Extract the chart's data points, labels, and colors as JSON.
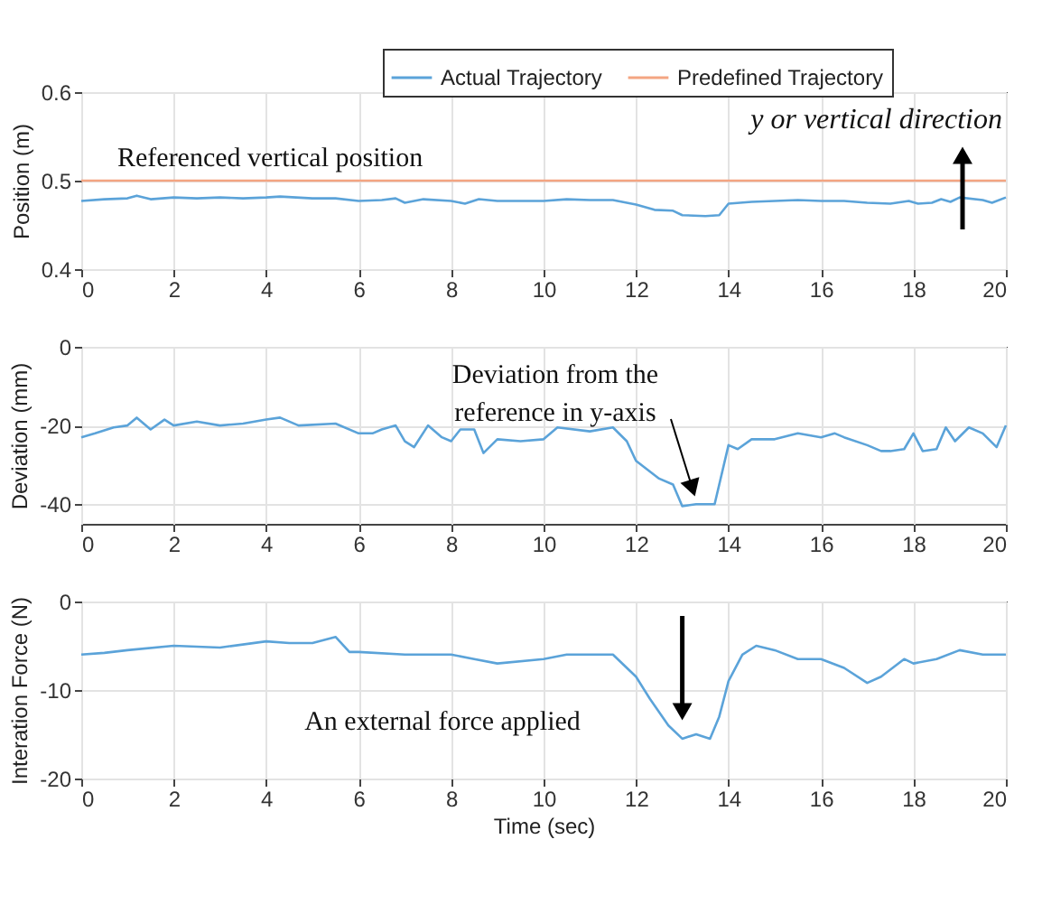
{
  "chart_data": [
    {
      "type": "line",
      "ylabel": "Position (m)",
      "xlim": [
        0,
        20
      ],
      "xticks": [
        0,
        2,
        4,
        6,
        8,
        10,
        12,
        14,
        16,
        18,
        20
      ],
      "ylim": [
        0.4,
        0.6
      ],
      "yticks": [
        0.4,
        0.5,
        0.6
      ],
      "grid": true,
      "legend": "top right",
      "annotations": [
        "Referenced vertical position",
        "y or vertical direction"
      ],
      "series": [
        {
          "name": "Actual Trajectory",
          "color": "#5ba3d9",
          "x": [
            0,
            0.5,
            1,
            1.2,
            1.5,
            2,
            2.5,
            3,
            3.5,
            4,
            4.3,
            5,
            5.5,
            6,
            6.5,
            6.8,
            7,
            7.4,
            8,
            8.3,
            8.6,
            9,
            10,
            10.5,
            11,
            11.5,
            12,
            12.4,
            12.8,
            13,
            13.5,
            13.8,
            14,
            14.5,
            15,
            15.5,
            16,
            16.5,
            17,
            17.5,
            17.9,
            18.1,
            18.4,
            18.6,
            18.8,
            19,
            19.5,
            19.7,
            20
          ],
          "values": [
            0.477,
            0.479,
            0.48,
            0.483,
            0.479,
            0.481,
            0.48,
            0.481,
            0.48,
            0.481,
            0.482,
            0.48,
            0.48,
            0.477,
            0.478,
            0.48,
            0.475,
            0.479,
            0.477,
            0.474,
            0.479,
            0.477,
            0.477,
            0.479,
            0.478,
            0.478,
            0.473,
            0.467,
            0.466,
            0.461,
            0.46,
            0.461,
            0.474,
            0.476,
            0.477,
            0.478,
            0.477,
            0.477,
            0.475,
            0.474,
            0.477,
            0.474,
            0.475,
            0.479,
            0.476,
            0.481,
            0.478,
            0.475,
            0.481
          ]
        },
        {
          "name": "Predefined Trajectory",
          "color": "#f4a582",
          "x": [
            0,
            20
          ],
          "values": [
            0.5,
            0.5
          ]
        }
      ]
    },
    {
      "type": "line",
      "ylabel": "Deviation (mm)",
      "xlim": [
        0,
        20
      ],
      "xticks": [
        0,
        2,
        4,
        6,
        8,
        10,
        12,
        14,
        16,
        18,
        20
      ],
      "ylim": [
        -45,
        0
      ],
      "yticks": [
        -40,
        -20,
        0
      ],
      "grid": true,
      "annotations": [
        {
          "text": "Deviation from the reference in y-axis",
          "x": 13.3,
          "y": -39
        }
      ],
      "series": [
        {
          "color": "#5ba3d9",
          "x": [
            0,
            0.3,
            0.7,
            1,
            1.2,
            1.5,
            1.8,
            2,
            2.5,
            3,
            3.5,
            4,
            4.3,
            4.7,
            5.5,
            6,
            6.3,
            6.5,
            6.8,
            7,
            7.2,
            7.5,
            7.8,
            8,
            8.2,
            8.5,
            8.7,
            9,
            9.5,
            10,
            10.3,
            11,
            11.5,
            11.8,
            12,
            12.5,
            12.8,
            13,
            13.3,
            13.7,
            14,
            14.2,
            14.5,
            15,
            15.5,
            16,
            16.3,
            16.5,
            17,
            17.3,
            17.5,
            17.8,
            18,
            18.2,
            18.5,
            18.7,
            18.9,
            19.2,
            19.5,
            19.8,
            20
          ],
          "values": [
            -23,
            -22,
            -20.5,
            -20,
            -18,
            -21,
            -18.5,
            -20,
            -19,
            -20,
            -19.5,
            -18.5,
            -18,
            -20,
            -19.5,
            -22,
            -22,
            -21,
            -20,
            -24,
            -25.5,
            -20,
            -23,
            -24,
            -21,
            -21,
            -27,
            -23.5,
            -24,
            -23.5,
            -20.5,
            -21.5,
            -20.5,
            -24,
            -29,
            -33.5,
            -35,
            -40.5,
            -40,
            -40,
            -25,
            -26,
            -23.5,
            -23.5,
            -22,
            -23,
            -22,
            -23,
            -25,
            -26.5,
            -26.5,
            -26,
            -22,
            -26.5,
            -26,
            -20.5,
            -24,
            -20.5,
            -22,
            -25.5,
            -20
          ]
        }
      ]
    },
    {
      "type": "line",
      "xlabel": "Time (sec)",
      "ylabel": "Interation Force (N)",
      "xlim": [
        0,
        20
      ],
      "xticks": [
        0,
        2,
        4,
        6,
        8,
        10,
        12,
        14,
        16,
        18,
        20
      ],
      "ylim": [
        -20,
        0
      ],
      "yticks": [
        -20,
        -10,
        0
      ],
      "grid": true,
      "annotations": [
        "An external force applied"
      ],
      "series": [
        {
          "color": "#5ba3d9",
          "x": [
            0,
            0.5,
            1,
            2,
            3,
            4,
            4.5,
            5,
            5.5,
            5.8,
            6,
            7,
            8,
            8.5,
            9,
            10,
            10.5,
            11,
            11.5,
            12,
            12.3,
            12.7,
            13,
            13.3,
            13.6,
            13.8,
            14,
            14.3,
            14.6,
            15,
            15.5,
            16,
            16.5,
            17,
            17.3,
            17.8,
            18,
            18.5,
            19,
            19.5,
            20
          ],
          "values": [
            -6,
            -5.8,
            -5.5,
            -5,
            -5.2,
            -4.5,
            -4.7,
            -4.7,
            -4,
            -5.7,
            -5.7,
            -6,
            -6,
            -6.5,
            -7,
            -6.5,
            -6,
            -6,
            -6,
            -8.5,
            -11,
            -14,
            -15.5,
            -15,
            -15.5,
            -13,
            -9,
            -6,
            -5,
            -5.5,
            -6.5,
            -6.5,
            -7.5,
            -9.2,
            -8.5,
            -6.5,
            -7,
            -6.5,
            -5.5,
            -6,
            -6
          ]
        }
      ]
    }
  ]
}
